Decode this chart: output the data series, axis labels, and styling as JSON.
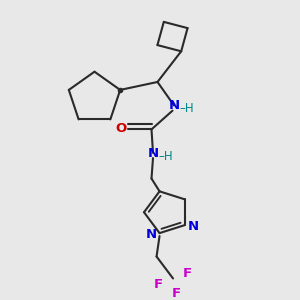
{
  "bg_color": "#e8e8e8",
  "bond_color": "#2a2a2a",
  "N_color": "#0000dd",
  "O_color": "#cc0000",
  "F_color": "#cc00cc",
  "H_color": "#008888",
  "lw": 1.5,
  "dbo": 0.018,
  "figsize": [
    3.0,
    3.0
  ],
  "dpi": 100,
  "xlim": [
    0.0,
    1.0
  ],
  "ylim": [
    0.0,
    1.0
  ]
}
